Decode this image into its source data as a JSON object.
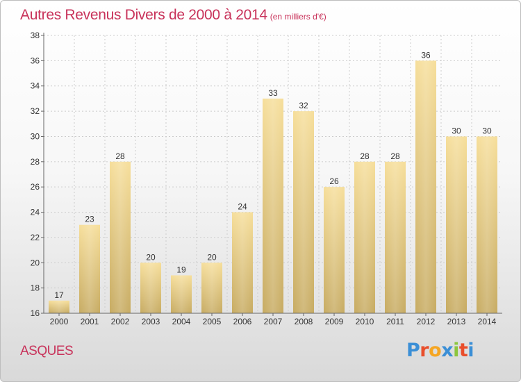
{
  "header": {
    "title": "Autres Revenus Divers de 2000 à 2014",
    "subtitle": "(en milliers d'€)"
  },
  "footer": {
    "place": "ASQUES",
    "logo": {
      "letters": [
        "P",
        "r",
        "o",
        "x",
        "i",
        "t",
        "i"
      ],
      "colors": [
        "#3b8fd6",
        "#e94e2b",
        "#f5a623",
        "#3b8fd6",
        "#8cc63e",
        "#e94e2b",
        "#3b8fd6"
      ]
    }
  },
  "chart_data": {
    "type": "bar",
    "categories": [
      "2000",
      "2001",
      "2002",
      "2003",
      "2004",
      "2005",
      "2006",
      "2007",
      "2008",
      "2009",
      "2010",
      "2011",
      "2012",
      "2013",
      "2014"
    ],
    "values": [
      17,
      23,
      28,
      20,
      19,
      20,
      24,
      33,
      32,
      26,
      28,
      28,
      36,
      30,
      30
    ],
    "title": "Autres Revenus Divers de 2000 à 2014",
    "xlabel": "",
    "ylabel": "",
    "ylim": [
      16,
      38
    ],
    "yticks": [
      16,
      18,
      20,
      22,
      24,
      26,
      28,
      30,
      32,
      34,
      36,
      38
    ],
    "grid": true,
    "bar_colors": {
      "top": "#f6de9a",
      "bottom": "#c7ab62"
    },
    "grid_color": "#cccccc"
  }
}
